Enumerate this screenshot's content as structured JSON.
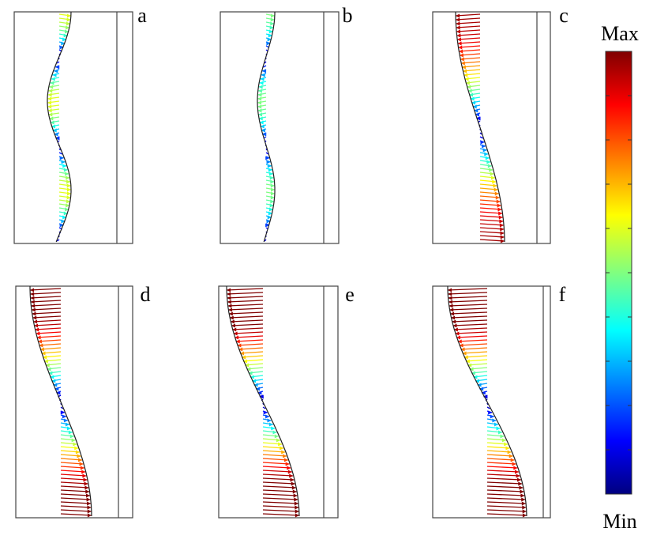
{
  "panels": [
    {
      "label": "a"
    },
    {
      "label": "b"
    },
    {
      "label": "c"
    },
    {
      "label": "d"
    },
    {
      "label": "e"
    },
    {
      "label": "f"
    }
  ],
  "colorbar": {
    "max": "Max",
    "min": "Min"
  }
}
